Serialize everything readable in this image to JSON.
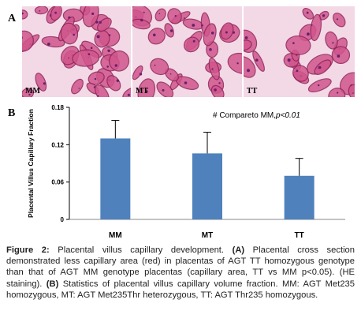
{
  "figure": {
    "panel_a_letter": "A",
    "panel_b_letter": "B",
    "micrograph_labels": [
      "MM",
      "MT",
      "TT"
    ],
    "colors": {
      "tissue_background": "#f3d8e6",
      "villus_fill": "#d0568c",
      "villus_edge": "#8e2257",
      "bar_fill": "#4f81bd",
      "axis": "#000000"
    }
  },
  "chart_data": {
    "type": "bar",
    "categories": [
      "MM",
      "MT",
      "TT"
    ],
    "values": [
      0.13,
      0.106,
      0.07
    ],
    "error_upper": [
      0.159,
      0.14,
      0.098
    ],
    "ylabel": "Placental Villus Capillary Fraction",
    "yticks": [
      "0",
      "0.06",
      "0.12",
      "0.18"
    ],
    "ylim": [
      0,
      0.18
    ],
    "annotation_prefix": "# Compareto MM,",
    "annotation_italic": "p<0.01",
    "grid": false,
    "legend": "none"
  },
  "caption": {
    "figure_label": "Figure 2:",
    "title": " Placental villus capillary development. ",
    "part_a_tag": "(A)",
    "part_a_text": " Placental cross section demonstrated less capillary area (red) in placentas of AGT TT homozygous genotype than that of AGT MM genotype placentas (capillary area, TT vs MM p<0.05). (HE staining). ",
    "part_b_tag": "(B)",
    "part_b_text": " Statistics of placental villus capillary volume fraction. MM: AGT Met235 homozygous, MT: AGT Met235Thr heterozygous, TT: AGT Thr235 homozygous."
  }
}
